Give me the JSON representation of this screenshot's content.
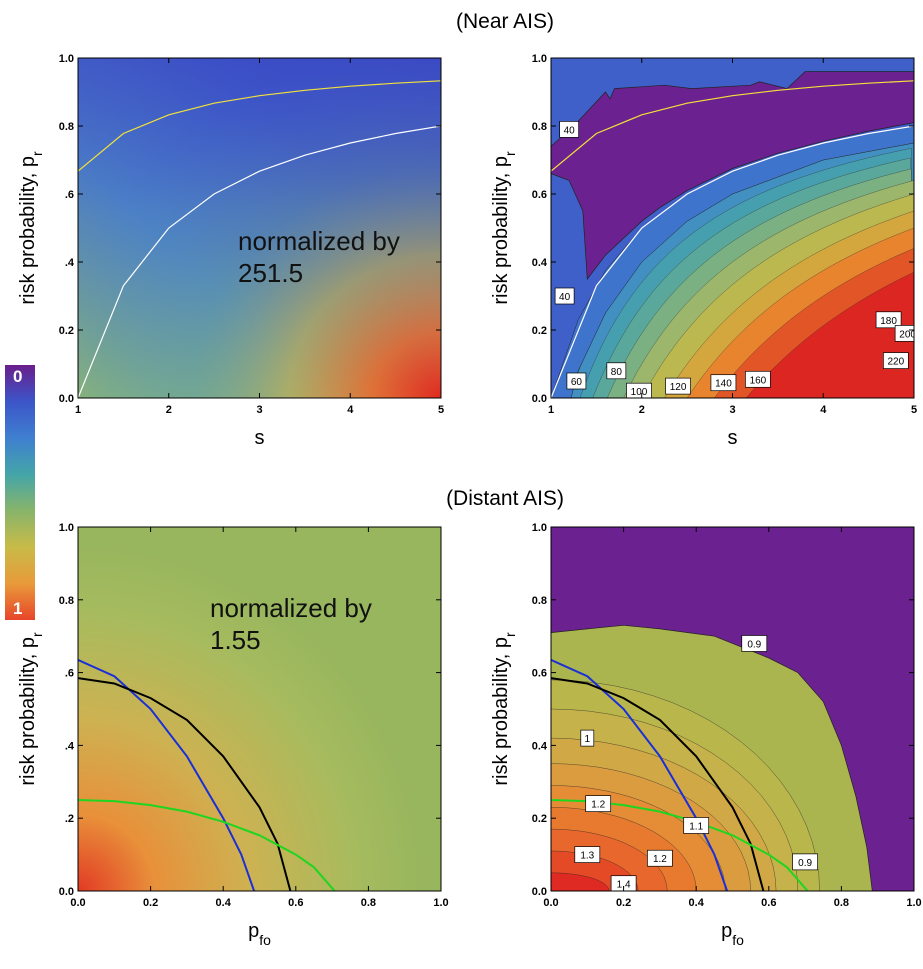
{
  "section_titles": {
    "top": "(Near AIS)",
    "bottom": "(Distant AIS)"
  },
  "colorbar": {
    "top_label": "0",
    "bottom_label": "1",
    "colors": [
      "#6a1e8c",
      "#3c55c8",
      "#3f7fd0",
      "#44a5a8",
      "#88b46a",
      "#c8bb48",
      "#e89a3a",
      "#e8452a"
    ]
  },
  "chart_data": [
    {
      "panel": "near-density",
      "type": "heatmap",
      "xlabel": "s",
      "ylabel": "risk probability,  p",
      "ylabel_sub": "r",
      "xlim": [
        1,
        5
      ],
      "ylim": [
        0,
        1
      ],
      "xticks": [
        1,
        2,
        3,
        4,
        5
      ],
      "xtick_labels": [
        "1",
        "2",
        "3",
        "4",
        "5"
      ],
      "yticks": [
        0,
        0.2,
        0.4,
        0.6,
        0.8,
        1.0
      ],
      "ytick_labels": [
        "0.0",
        "0.2",
        ".4",
        ".6",
        "0.8",
        "1.0"
      ],
      "annotation": [
        "normalized by",
        "251.5"
      ],
      "curves": [
        {
          "color": "#ffffff",
          "x": [
            1,
            1.5,
            2,
            2.5,
            3,
            3.5,
            4,
            4.5,
            5
          ],
          "y": [
            0,
            0.33,
            0.5,
            0.6,
            0.667,
            0.714,
            0.75,
            0.778,
            0.8
          ]
        },
        {
          "color": "#f2e23a",
          "x": [
            1,
            1.5,
            2,
            2.5,
            3,
            3.5,
            4,
            4.5,
            5
          ],
          "y": [
            0.667,
            0.778,
            0.833,
            0.867,
            0.889,
            0.905,
            0.917,
            0.926,
            0.933
          ]
        }
      ]
    },
    {
      "panel": "near-contour",
      "type": "heatmap",
      "xlabel": "s",
      "ylabel": "risk probability,  p",
      "ylabel_sub": "r",
      "xlim": [
        1,
        5
      ],
      "ylim": [
        0,
        1
      ],
      "xticks": [
        1,
        2,
        3,
        4,
        5
      ],
      "xtick_labels": [
        "1",
        "2",
        "3",
        "4",
        "5"
      ],
      "yticks": [
        0,
        0.2,
        0.4,
        0.6,
        0.8,
        1.0
      ],
      "ytick_labels": [
        "0.0",
        "0.2",
        "0.4",
        "0.6",
        "0.8",
        "1.0"
      ],
      "contour_labels": [
        {
          "text": "40",
          "x": 1.2,
          "y": 0.79
        },
        {
          "text": "40",
          "x": 1.15,
          "y": 0.3
        },
        {
          "text": "60",
          "x": 1.28,
          "y": 0.05
        },
        {
          "text": "80",
          "x": 1.72,
          "y": 0.08
        },
        {
          "text": "100",
          "x": 1.97,
          "y": 0.02
        },
        {
          "text": "120",
          "x": 2.4,
          "y": 0.035
        },
        {
          "text": "140",
          "x": 2.9,
          "y": 0.045
        },
        {
          "text": "160",
          "x": 3.28,
          "y": 0.055
        },
        {
          "text": "180",
          "x": 4.72,
          "y": 0.23
        },
        {
          "text": "200",
          "x": 4.93,
          "y": 0.19
        },
        {
          "text": "220",
          "x": 4.8,
          "y": 0.11
        }
      ],
      "curves": [
        {
          "color": "#ffffff",
          "x": [
            1,
            1.5,
            2,
            2.5,
            3,
            3.5,
            4,
            4.5,
            5
          ],
          "y": [
            0,
            0.33,
            0.5,
            0.6,
            0.667,
            0.714,
            0.75,
            0.778,
            0.8
          ]
        },
        {
          "color": "#f2e23a",
          "x": [
            1,
            1.5,
            2,
            2.5,
            3,
            3.5,
            4,
            4.5,
            5
          ],
          "y": [
            0.667,
            0.778,
            0.833,
            0.867,
            0.889,
            0.905,
            0.917,
            0.926,
            0.933
          ]
        }
      ]
    },
    {
      "panel": "distant-density",
      "type": "heatmap",
      "xlabel": "p",
      "xlabel_sub": "fo",
      "ylabel": "risk probability,  p",
      "ylabel_sub": "r",
      "xlim": [
        0,
        1
      ],
      "ylim": [
        0,
        1
      ],
      "xticks": [
        0,
        0.2,
        0.4,
        0.6,
        0.8,
        1.0
      ],
      "xtick_labels": [
        "0.0",
        "0.2",
        "0.4",
        "0.6",
        "0.8",
        "1.0"
      ],
      "yticks": [
        0,
        0.2,
        0.4,
        0.6,
        0.8,
        1.0
      ],
      "ytick_labels": [
        "0.0",
        ".2",
        ".4",
        ".6",
        "0.8",
        "1.0"
      ],
      "annotation": [
        "normalized by",
        "1.55"
      ],
      "curves": [
        {
          "color": "#1a2fd6",
          "x": [
            0,
            0.1,
            0.2,
            0.3,
            0.4,
            0.45,
            0.485
          ],
          "y": [
            0.635,
            0.59,
            0.5,
            0.37,
            0.2,
            0.1,
            0
          ]
        },
        {
          "color": "#000000",
          "x": [
            0,
            0.1,
            0.2,
            0.3,
            0.4,
            0.5,
            0.55,
            0.585
          ],
          "y": [
            0.585,
            0.57,
            0.53,
            0.47,
            0.37,
            0.23,
            0.13,
            0
          ]
        },
        {
          "color": "#1fd61f",
          "x": [
            0,
            0.1,
            0.2,
            0.3,
            0.4,
            0.5,
            0.6,
            0.65,
            0.707
          ],
          "y": [
            0.25,
            0.247,
            0.236,
            0.218,
            0.19,
            0.153,
            0.1,
            0.065,
            0
          ]
        }
      ]
    },
    {
      "panel": "distant-contour",
      "type": "heatmap",
      "xlabel": "p",
      "xlabel_sub": "fo",
      "ylabel": "risk probability,  p",
      "ylabel_sub": "r",
      "xlim": [
        0,
        1
      ],
      "ylim": [
        0,
        1
      ],
      "xticks": [
        0,
        0.2,
        0.4,
        0.6,
        0.8,
        1.0
      ],
      "xtick_labels": [
        "0.0",
        "0.2",
        "0.4",
        "0.6",
        "0.8",
        "1.0"
      ],
      "yticks": [
        0,
        0.2,
        0.4,
        0.6,
        0.8,
        1.0
      ],
      "ytick_labels": [
        "0.0",
        "0.2",
        "0.4",
        "0.6",
        "0.8",
        "1.0"
      ],
      "contour_labels": [
        {
          "text": "0.9",
          "x": 0.56,
          "y": 0.68
        },
        {
          "text": "1",
          "x": 0.1,
          "y": 0.42
        },
        {
          "text": "1.2",
          "x": 0.13,
          "y": 0.24
        },
        {
          "text": "1.1",
          "x": 0.4,
          "y": 0.18
        },
        {
          "text": "0.9",
          "x": 0.7,
          "y": 0.08
        },
        {
          "text": "1.3",
          "x": 0.1,
          "y": 0.1
        },
        {
          "text": "1.2",
          "x": 0.3,
          "y": 0.09
        },
        {
          "text": "1.4",
          "x": 0.2,
          "y": 0.02
        }
      ],
      "curves": [
        {
          "color": "#1a2fd6",
          "x": [
            0,
            0.1,
            0.2,
            0.3,
            0.4,
            0.45,
            0.485
          ],
          "y": [
            0.635,
            0.59,
            0.5,
            0.37,
            0.2,
            0.1,
            0
          ]
        },
        {
          "color": "#000000",
          "x": [
            0,
            0.1,
            0.2,
            0.3,
            0.4,
            0.5,
            0.55,
            0.585
          ],
          "y": [
            0.585,
            0.57,
            0.53,
            0.47,
            0.37,
            0.23,
            0.13,
            0
          ]
        },
        {
          "color": "#1fd61f",
          "x": [
            0,
            0.1,
            0.2,
            0.3,
            0.4,
            0.5,
            0.6,
            0.65,
            0.707
          ],
          "y": [
            0.25,
            0.247,
            0.236,
            0.218,
            0.19,
            0.153,
            0.1,
            0.065,
            0
          ]
        }
      ]
    }
  ]
}
